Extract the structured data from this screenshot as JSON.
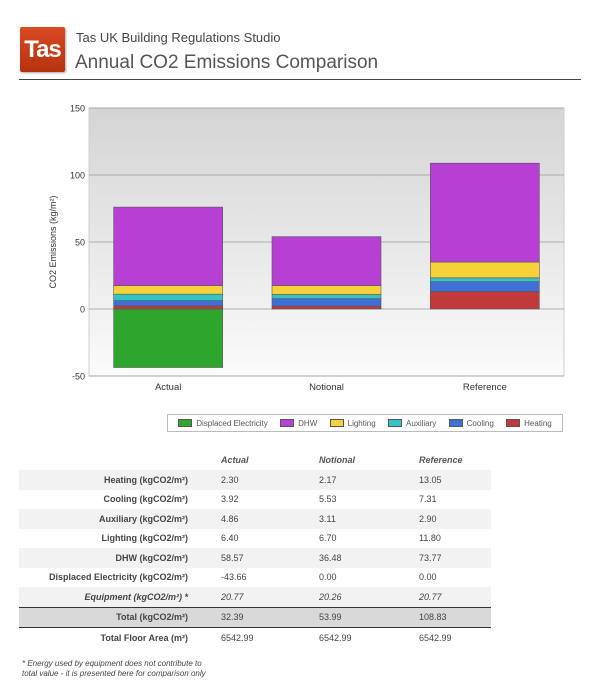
{
  "header": {
    "logo_text": "Tas",
    "app_title": "Tas UK Building Regulations Studio",
    "page_title": "Annual CO2 Emissions Comparison"
  },
  "chart_data": {
    "type": "bar",
    "stacked": true,
    "categories": [
      "Actual",
      "Notional",
      "Reference"
    ],
    "ylabel": "CO2 Emissions (kg/m²)",
    "ylim": [
      -50,
      150
    ],
    "yticks": [
      "150",
      "100",
      "50",
      "0",
      "-50"
    ],
    "grid": true,
    "legend_position": "bottom-right",
    "series": [
      {
        "name": "Displaced Electricity",
        "values": [
          -43.66,
          0.0,
          0.0
        ],
        "color": "#2ea62e"
      },
      {
        "name": "Heating",
        "values": [
          2.3,
          2.17,
          13.05
        ],
        "color": "#c0393b"
      },
      {
        "name": "Cooling",
        "values": [
          3.92,
          5.53,
          7.31
        ],
        "color": "#3f6fd6"
      },
      {
        "name": "Auxiliary",
        "values": [
          4.86,
          3.11,
          2.9
        ],
        "color": "#35c4c4"
      },
      {
        "name": "Lighting",
        "values": [
          6.4,
          6.7,
          11.8
        ],
        "color": "#f5d23a"
      },
      {
        "name": "DHW",
        "values": [
          58.57,
          36.48,
          73.77
        ],
        "color": "#b640d4"
      }
    ],
    "legend_order": [
      "Displaced Electricity",
      "DHW",
      "Lighting",
      "Auxiliary",
      "Cooling",
      "Heating"
    ]
  },
  "table": {
    "columns": [
      "Actual",
      "Notional",
      "Reference"
    ],
    "rows": [
      {
        "label": "Heating (kgCO2/m²)",
        "values": [
          "2.30",
          "2.17",
          "13.05"
        ],
        "style": "shade"
      },
      {
        "label": "Cooling (kgCO2/m²)",
        "values": [
          "3.92",
          "5.53",
          "7.31"
        ],
        "style": ""
      },
      {
        "label": "Auxiliary (kgCO2/m²)",
        "values": [
          "4.86",
          "3.11",
          "2.90"
        ],
        "style": "shade"
      },
      {
        "label": "Lighting (kgCO2/m²)",
        "values": [
          "6.40",
          "6.70",
          "11.80"
        ],
        "style": ""
      },
      {
        "label": "DHW (kgCO2/m²)",
        "values": [
          "58.57",
          "36.48",
          "73.77"
        ],
        "style": "shade"
      },
      {
        "label": "Displaced Electricity (kgCO2/m²)",
        "values": [
          "-43.66",
          "0.00",
          "0.00"
        ],
        "style": ""
      },
      {
        "label": "Equipment (kgCO2/m²) *",
        "values": [
          "20.77",
          "20.26",
          "20.77"
        ],
        "style": "shade italic"
      },
      {
        "label": "Total (kgCO2/m²)",
        "values": [
          "32.39",
          "53.99",
          "108.83"
        ],
        "style": "total"
      },
      {
        "label": "Total Floor Area (m²)",
        "values": [
          "6542.99",
          "6542.99",
          "6542.99"
        ],
        "style": ""
      }
    ]
  },
  "footnote": {
    "line1": "* Energy used by equipment does not contribute to",
    "line2": "total value - it is presented here for comparison only"
  }
}
